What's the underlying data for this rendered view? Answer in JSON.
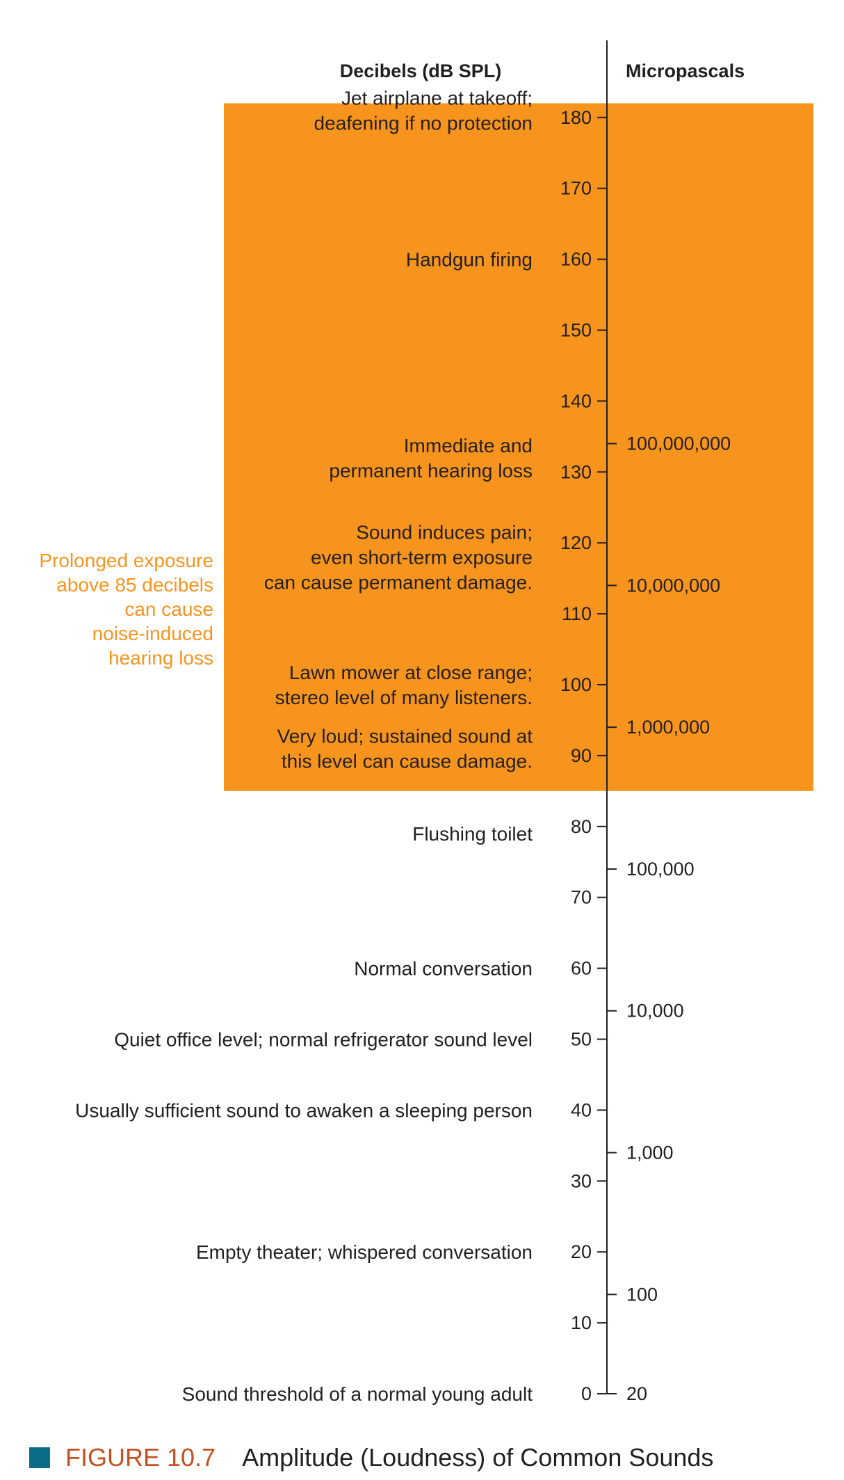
{
  "colors": {
    "band": "#f7941e",
    "side_note": "#f7941e",
    "figure_square": "#0b6e87",
    "figure_number": "#c4511f",
    "ink": "#231f20"
  },
  "figure": {
    "number": "FIGURE 10.7",
    "title": "Amplitude (Loudness) of Common Sounds"
  },
  "chart_data": {
    "type": "scale",
    "left_axis": {
      "label": "Decibels (dB SPL)",
      "ticks": [
        0,
        10,
        20,
        30,
        40,
        50,
        60,
        70,
        80,
        90,
        100,
        110,
        120,
        130,
        140,
        150,
        160,
        170,
        180
      ],
      "range": [
        0,
        180
      ]
    },
    "right_axis": {
      "label": "Micropascals",
      "scale": "log",
      "ticks": [
        {
          "db": 0,
          "label": "20"
        },
        {
          "db": 14,
          "label": "100"
        },
        {
          "db": 34,
          "label": "1,000"
        },
        {
          "db": 54,
          "label": "10,000"
        },
        {
          "db": 74,
          "label": "100,000"
        },
        {
          "db": 94,
          "label": "1,000,000"
        },
        {
          "db": 114,
          "label": "10,000,000"
        },
        {
          "db": 134,
          "label": "100,000,000"
        }
      ]
    },
    "highlight_band": {
      "from_db": 85,
      "to_db": 182
    },
    "side_note": [
      "Prolonged exposure",
      "above 85 decibels",
      "can cause",
      "noise-induced",
      "hearing loss"
    ],
    "annotations": [
      {
        "db": 181,
        "lines": [
          "Jet airplane at takeoff;",
          "deafening if no protection"
        ]
      },
      {
        "db": 160,
        "lines": [
          "Handgun firing"
        ]
      },
      {
        "db": 132,
        "lines": [
          "Immediate and",
          "permanent hearing loss"
        ]
      },
      {
        "db": 118,
        "lines": [
          "Sound induces pain;",
          "even short-term exposure",
          "can cause permanent damage."
        ]
      },
      {
        "db": 100,
        "lines": [
          "Lawn mower at close range;",
          "stereo level of many listeners."
        ]
      },
      {
        "db": 91,
        "lines": [
          "Very loud; sustained sound at",
          "this level can cause damage."
        ]
      },
      {
        "db": 79,
        "lines": [
          "Flushing toilet"
        ]
      },
      {
        "db": 60,
        "lines": [
          "Normal conversation"
        ]
      },
      {
        "db": 50,
        "lines": [
          "Quiet office level; normal refrigerator sound level"
        ]
      },
      {
        "db": 40,
        "lines": [
          "Usually sufficient sound to awaken a sleeping person"
        ]
      },
      {
        "db": 20,
        "lines": [
          "Empty theater; whispered conversation"
        ]
      },
      {
        "db": 0,
        "lines": [
          "Sound threshold of a normal young adult"
        ]
      }
    ]
  }
}
